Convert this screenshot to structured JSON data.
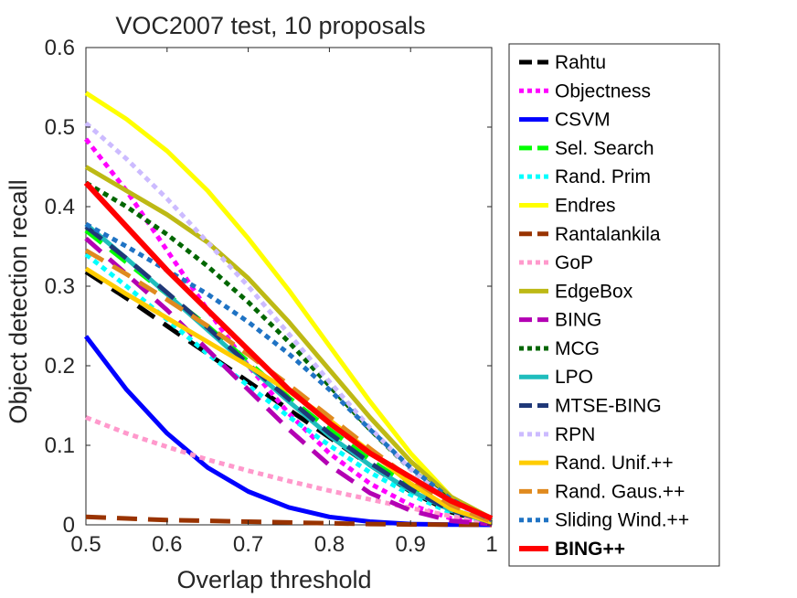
{
  "chart_data": {
    "type": "line",
    "title": "VOC2007 test, 10 proposals",
    "xlabel": "Overlap threshold",
    "ylabel": "Object detection recall",
    "xlim": [
      0.5,
      1
    ],
    "ylim": [
      0,
      0.6
    ],
    "xticks": [
      0.5,
      0.6,
      0.7,
      0.8,
      0.9,
      1
    ],
    "xtick_labels": [
      "0.5",
      "0.6",
      "0.7",
      "0.8",
      "0.9",
      "1"
    ],
    "yticks": [
      0,
      0.1,
      0.2,
      0.3,
      0.4,
      0.5,
      0.6
    ],
    "ytick_labels": [
      "0",
      "0.1",
      "0.2",
      "0.3",
      "0.4",
      "0.5",
      "0.6"
    ],
    "grid": false,
    "legend_position": "right-outside",
    "x": [
      0.5,
      0.55,
      0.6,
      0.65,
      0.7,
      0.75,
      0.8,
      0.85,
      0.9,
      0.95,
      1.0
    ],
    "series": [
      {
        "name": "Rahtu",
        "color": "#000000",
        "dash": "dashed",
        "values": [
          0.318,
          0.285,
          0.25,
          0.215,
          0.18,
          0.145,
          0.11,
          0.075,
          0.042,
          0.016,
          0.002
        ]
      },
      {
        "name": "Objectness",
        "color": "#ff00ff",
        "dash": "dotted",
        "values": [
          0.485,
          0.42,
          0.345,
          0.27,
          0.2,
          0.14,
          0.09,
          0.052,
          0.025,
          0.008,
          0.001
        ]
      },
      {
        "name": "CSVM",
        "color": "#0000ff",
        "dash": "solid",
        "values": [
          0.237,
          0.17,
          0.115,
          0.072,
          0.042,
          0.022,
          0.01,
          0.004,
          0.001,
          0.0003,
          0.0
        ]
      },
      {
        "name": "Sel. Search",
        "color": "#00ff00",
        "dash": "dashed",
        "values": [
          0.37,
          0.33,
          0.29,
          0.25,
          0.205,
          0.16,
          0.12,
          0.082,
          0.048,
          0.02,
          0.003
        ]
      },
      {
        "name": "Rand. Prim",
        "color": "#00ffff",
        "dash": "dotted",
        "values": [
          0.34,
          0.3,
          0.258,
          0.215,
          0.175,
          0.136,
          0.1,
          0.066,
          0.038,
          0.015,
          0.002
        ]
      },
      {
        "name": "Endres",
        "color": "#ffff00",
        "dash": "solid",
        "values": [
          0.543,
          0.51,
          0.47,
          0.42,
          0.36,
          0.295,
          0.225,
          0.155,
          0.09,
          0.035,
          0.005
        ]
      },
      {
        "name": "Rantalankila",
        "color": "#993300",
        "dash": "dashed",
        "values": [
          0.01,
          0.008,
          0.006,
          0.005,
          0.004,
          0.003,
          0.002,
          0.001,
          0.0005,
          0.0002,
          0.0
        ]
      },
      {
        "name": "GoP",
        "color": "#ff99cc",
        "dash": "dotted",
        "values": [
          0.135,
          0.115,
          0.098,
          0.082,
          0.068,
          0.055,
          0.043,
          0.032,
          0.021,
          0.011,
          0.003
        ]
      },
      {
        "name": "EdgeBox",
        "color": "#bdb915",
        "dash": "solid",
        "values": [
          0.45,
          0.42,
          0.39,
          0.355,
          0.31,
          0.255,
          0.195,
          0.135,
          0.08,
          0.035,
          0.008
        ]
      },
      {
        "name": "BING",
        "color": "#b300b3",
        "dash": "dashed",
        "values": [
          0.36,
          0.315,
          0.27,
          0.22,
          0.17,
          0.12,
          0.075,
          0.04,
          0.018,
          0.005,
          0.001
        ]
      },
      {
        "name": "MCG",
        "color": "#006600",
        "dash": "dotted",
        "values": [
          0.43,
          0.4,
          0.365,
          0.325,
          0.28,
          0.23,
          0.175,
          0.12,
          0.07,
          0.03,
          0.005
        ]
      },
      {
        "name": "LPO",
        "color": "#1fbdbd",
        "dash": "solid",
        "values": [
          0.378,
          0.335,
          0.29,
          0.245,
          0.2,
          0.155,
          0.112,
          0.075,
          0.043,
          0.018,
          0.003
        ]
      },
      {
        "name": "MTSE-BING",
        "color": "#1f3878",
        "dash": "dashed",
        "values": [
          0.375,
          0.335,
          0.292,
          0.248,
          0.202,
          0.158,
          0.115,
          0.078,
          0.045,
          0.018,
          0.003
        ]
      },
      {
        "name": "RPN",
        "color": "#ccbbff",
        "dash": "dotted",
        "values": [
          0.505,
          0.46,
          0.41,
          0.355,
          0.3,
          0.24,
          0.18,
          0.122,
          0.07,
          0.028,
          0.004
        ]
      },
      {
        "name": "Rand. Unif.++",
        "color": "#ffcc00",
        "dash": "solid",
        "values": [
          0.322,
          0.29,
          0.26,
          0.23,
          0.2,
          0.168,
          0.132,
          0.092,
          0.052,
          0.02,
          0.003
        ]
      },
      {
        "name": "Rand. Gaus.++",
        "color": "#e08a1f",
        "dash": "dashed",
        "values": [
          0.345,
          0.315,
          0.283,
          0.25,
          0.214,
          0.176,
          0.136,
          0.096,
          0.058,
          0.025,
          0.004
        ]
      },
      {
        "name": "Sliding Wind.++",
        "color": "#1f73c4",
        "dash": "dotted",
        "values": [
          0.378,
          0.35,
          0.32,
          0.29,
          0.255,
          0.215,
          0.17,
          0.12,
          0.072,
          0.032,
          0.006
        ]
      },
      {
        "name": "BING++",
        "color": "#ff0000",
        "dash": "solid",
        "bold": true,
        "values": [
          0.43,
          0.375,
          0.32,
          0.27,
          0.22,
          0.17,
          0.128,
          0.09,
          0.06,
          0.03,
          0.008
        ]
      }
    ]
  }
}
